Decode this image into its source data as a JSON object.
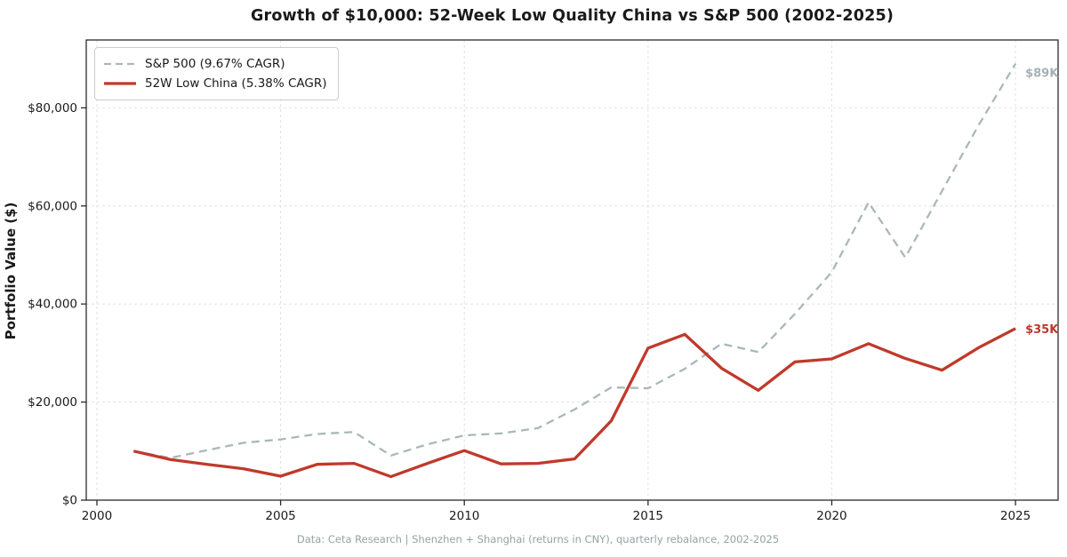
{
  "chart_data": {
    "type": "line",
    "title": "Growth of $10,000: 52-Week Low Quality China vs S&P 500 (2002-2025)",
    "ylabel": "Portfolio Value ($)",
    "xlabel": "",
    "footnote": "Data: Ceta Research | Shenzhen + Shanghai (returns in CNY), quarterly rebalance, 2002-2025",
    "grid": true,
    "legend_position": "upper-left",
    "xlim": [
      1999.71,
      2026.16
    ],
    "ylim": [
      0,
      93840
    ],
    "x_ticks": [
      {
        "v": 2000,
        "label": "2000"
      },
      {
        "v": 2005,
        "label": "2005"
      },
      {
        "v": 2010,
        "label": "2010"
      },
      {
        "v": 2015,
        "label": "2015"
      },
      {
        "v": 2020,
        "label": "2020"
      },
      {
        "v": 2025,
        "label": "2025"
      }
    ],
    "y_ticks": [
      {
        "v": 0,
        "label": "$0"
      },
      {
        "v": 20000,
        "label": "$20,000"
      },
      {
        "v": 40000,
        "label": "$40,000"
      },
      {
        "v": 60000,
        "label": "$60,000"
      },
      {
        "v": 80000,
        "label": "$80,000"
      }
    ],
    "x": [
      2001,
      2002,
      2003,
      2004,
      2005,
      2006,
      2007,
      2008,
      2009,
      2010,
      2011,
      2012,
      2013,
      2014,
      2015,
      2016,
      2017,
      2018,
      2019,
      2020,
      2021,
      2022,
      2023,
      2024,
      2025
    ],
    "series": [
      {
        "name": "S&P 500 (9.67% CAGR)",
        "style": "dashed",
        "color": "#a9b8b8",
        "end_label": "$89K",
        "end_label_color": "#a5b2b3",
        "values": [
          10000,
          8600,
          10200,
          11700,
          12400,
          13500,
          13900,
          9100,
          11400,
          13200,
          13600,
          14700,
          18500,
          23000,
          22800,
          26800,
          31900,
          30200,
          38000,
          46500,
          60700,
          49500,
          63000,
          76500,
          89000
        ]
      },
      {
        "name": "52W Low China (5.38% CAGR)",
        "style": "solid",
        "color": "#c0392b",
        "end_label": "$35K",
        "end_label_color": "#c0392b",
        "values": [
          10000,
          8300,
          7300,
          6400,
          4900,
          7300,
          7500,
          4800,
          7500,
          10100,
          7400,
          7500,
          8400,
          16200,
          31000,
          33800,
          26900,
          22400,
          28200,
          28800,
          31900,
          28900,
          26500,
          31100,
          35000
        ]
      }
    ],
    "colors": {
      "spine": "#2b2b2b",
      "grid": "#e2e2e2",
      "tick_text": "#1a1a1a",
      "footnote_text": "#95a3a3"
    }
  }
}
